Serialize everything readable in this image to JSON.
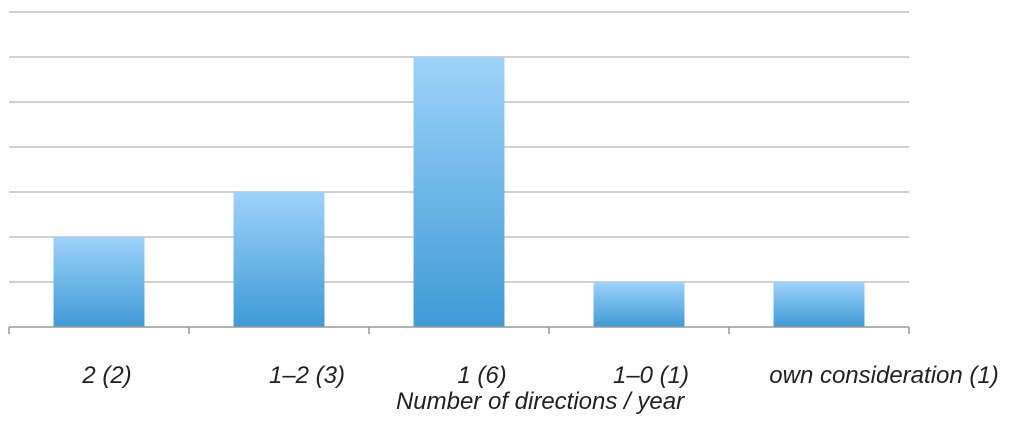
{
  "chart_data": {
    "type": "bar",
    "categories": [
      "2 (2)",
      "1–2 (3)",
      "1 (6)",
      "1–0 (1)",
      "own consideration (1)"
    ],
    "values": [
      2,
      3,
      6,
      1,
      1
    ],
    "title": "",
    "xlabel": "Number of directions / year",
    "ylabel": "",
    "ylim": [
      0,
      7
    ],
    "grid": true,
    "legend": "none",
    "colors": {
      "bar_top": "#9dd3fa",
      "bar_bottom": "#3f9ad6",
      "grid": "#b3b3b3",
      "axis": "#999999"
    }
  }
}
